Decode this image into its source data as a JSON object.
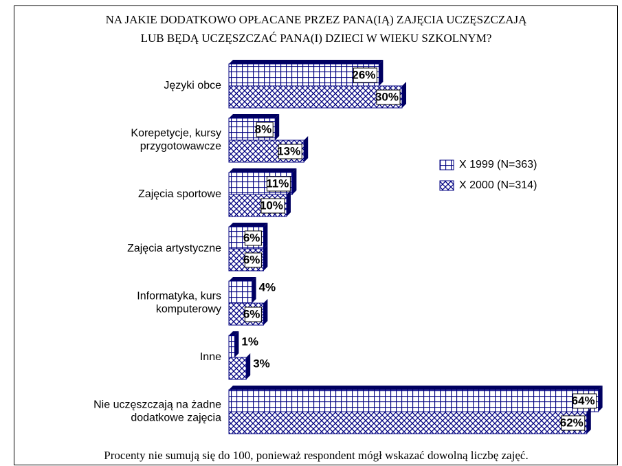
{
  "chart_data": {
    "type": "bar",
    "orientation": "horizontal",
    "title": [
      "NA JAKIE DODATKOWO OPŁACANE PRZEZ PANA(IĄ) ZAJĘCIA UCZĘSZCZAJĄ",
      "LUB BĘDĄ UCZĘSZCZAĆ PANA(I) DZIECI W WIEKU SZKOLNYM?"
    ],
    "categories": [
      "Języki obce",
      "Korepetycje, kursy\nprzygotowawcze",
      "Zajęcia sportowe",
      "Zajęcia artystyczne",
      "Informatyka, kurs\nkomputerowy",
      "Inne",
      "Nie uczęszczają na żadne\ndodatkowe zajęcia"
    ],
    "series": [
      {
        "name": "X 1999 (N=363)",
        "color": "#000080",
        "pattern": "grid",
        "values": [
          26,
          8,
          11,
          6,
          4,
          1,
          64
        ],
        "value_labels": [
          "26%",
          "8%",
          "11%",
          "6%",
          "4%",
          "1%",
          "64%"
        ]
      },
      {
        "name": "X 2000 (N=314)",
        "color": "#000080",
        "pattern": "crosshatch",
        "values": [
          30,
          13,
          10,
          6,
          6,
          3,
          62
        ],
        "value_labels": [
          "30%",
          "13%",
          "10%",
          "6%",
          "6%",
          "3%",
          "62%"
        ]
      }
    ],
    "note": "Procenty nie sumują się do 100, ponieważ respondent mógł wskazać dowolną liczbę zajęć."
  }
}
